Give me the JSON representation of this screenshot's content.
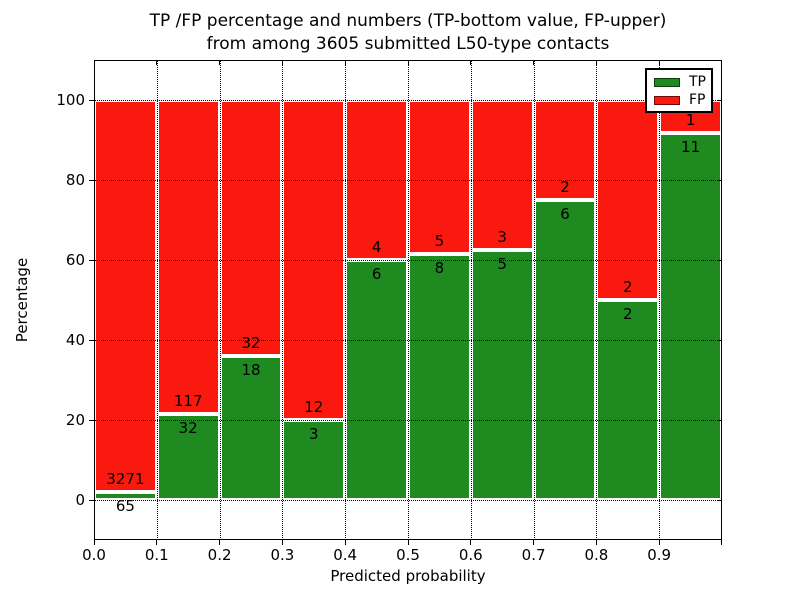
{
  "figure": {
    "title_line1": "TP /FP percentage and numbers (TP-bottom value, FP-upper)",
    "title_line2": "from among 3605 submitted L50-type contacts"
  },
  "axes": {
    "xlabel": "Predicted probability",
    "ylabel": "Percentage",
    "x_tick_labels": [
      "0.0",
      "0.1",
      "0.2",
      "0.3",
      "0.4",
      "0.5",
      "0.6",
      "0.7",
      "0.8",
      "0.9"
    ],
    "x_tick_values": [
      0.0,
      0.1,
      0.2,
      0.3,
      0.4,
      0.5,
      0.6,
      0.7,
      0.8,
      0.9
    ],
    "y_tick_labels": [
      "0",
      "20",
      "40",
      "60",
      "80",
      "100"
    ],
    "y_tick_values": [
      0,
      20,
      40,
      60,
      80,
      100
    ],
    "xlim": [
      0.0,
      1.0
    ],
    "ylim": [
      -10,
      110
    ],
    "grid_style": "dotted"
  },
  "legend": {
    "position": "upper-right",
    "items": [
      {
        "label": "TP",
        "color": "#1f8a1f"
      },
      {
        "label": "FP",
        "color": "#f9190f"
      }
    ]
  },
  "chart_data": {
    "type": "bar",
    "stacked": true,
    "normalized": "each bin scaled to 100%",
    "title": "TP /FP percentage and numbers (TP-bottom value, FP-upper) from among 3605 submitted L50-type contacts",
    "xlabel": "Predicted probability",
    "ylabel": "Percentage",
    "total_submitted_contacts": 3605,
    "bin_edges": [
      0.0,
      0.1,
      0.2,
      0.3,
      0.4,
      0.5,
      0.6,
      0.7,
      0.8,
      0.9,
      1.0
    ],
    "categories": [
      "0.0-0.1",
      "0.1-0.2",
      "0.2-0.3",
      "0.3-0.4",
      "0.4-0.5",
      "0.5-0.6",
      "0.6-0.7",
      "0.7-0.8",
      "0.8-0.9",
      "0.9-1.0"
    ],
    "series": [
      {
        "name": "TP",
        "color": "#1f8a1f",
        "counts": [
          65,
          32,
          18,
          3,
          6,
          8,
          5,
          6,
          2,
          11
        ],
        "percent": [
          1.95,
          21.48,
          36.0,
          20.0,
          60.0,
          61.54,
          62.5,
          75.0,
          50.0,
          91.67
        ]
      },
      {
        "name": "FP",
        "color": "#f9190f",
        "counts": [
          3271,
          117,
          32,
          12,
          4,
          5,
          3,
          2,
          2,
          1
        ],
        "percent": [
          98.05,
          78.52,
          64.0,
          80.0,
          40.0,
          38.46,
          37.5,
          25.0,
          50.0,
          8.33
        ]
      }
    ]
  },
  "colors": {
    "tp": "#1f8a1f",
    "fp": "#f9190f",
    "background": "#ffffff",
    "grid": "#000000",
    "text": "#000000"
  }
}
